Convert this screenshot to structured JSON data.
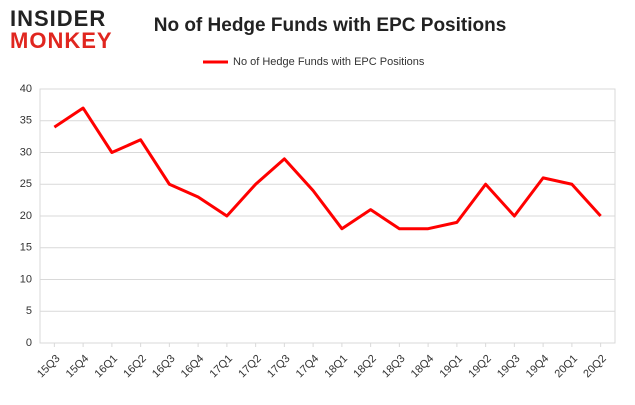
{
  "logo": {
    "line1": "INSIDER",
    "line2": "MONKEY"
  },
  "chart_data": {
    "type": "line",
    "title": "No of Hedge Funds with EPC Positions",
    "categories": [
      "15Q3",
      "15Q4",
      "16Q1",
      "16Q2",
      "16Q3",
      "16Q4",
      "17Q1",
      "17Q2",
      "17Q3",
      "17Q4",
      "18Q1",
      "18Q2",
      "18Q3",
      "18Q4",
      "19Q1",
      "19Q2",
      "19Q3",
      "19Q4",
      "20Q1",
      "20Q2"
    ],
    "series": [
      {
        "name": "No of Hedge Funds with EPC Positions",
        "color": "#ff0000",
        "values": [
          34,
          37,
          30,
          32,
          25,
          23,
          20,
          25,
          29,
          24,
          18,
          21,
          18,
          18,
          19,
          25,
          20,
          26,
          25,
          20
        ]
      }
    ],
    "ylim": [
      0,
      40
    ],
    "yticks": [
      0,
      5,
      10,
      15,
      20,
      25,
      30,
      35,
      40
    ],
    "grid": true,
    "legend": "top"
  }
}
